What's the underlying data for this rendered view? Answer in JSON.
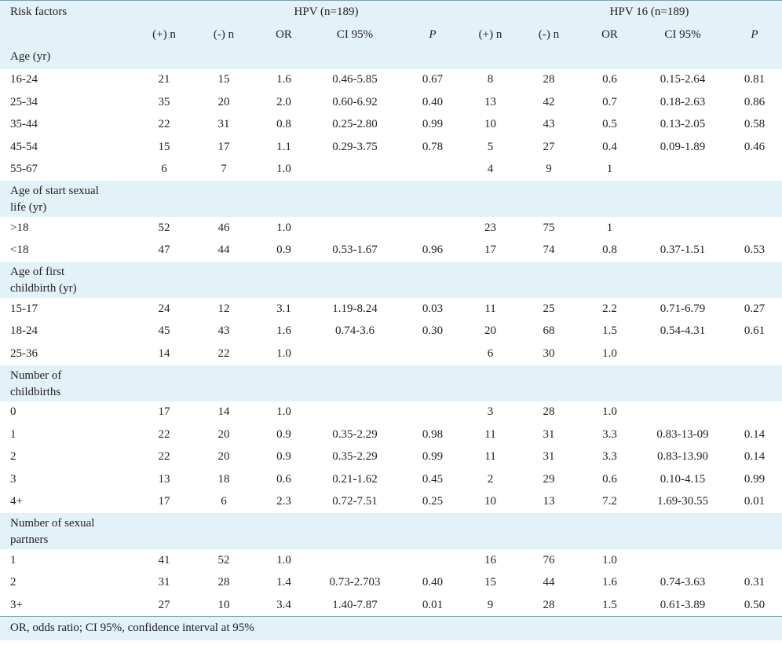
{
  "header": {
    "risk_factors": "Risk factors",
    "group1": "HPV (n=189)",
    "group2": "HPV 16 (n=189)",
    "cols": [
      "(+) n",
      "(-) n",
      "OR",
      "CI 95%",
      "P"
    ]
  },
  "sections": [
    {
      "title_lines": [
        "Age (yr)"
      ],
      "rows": [
        [
          "16-24",
          "21",
          "15",
          "1.6",
          "0.46-5.85",
          "0.67",
          "8",
          "28",
          "0.6",
          "0.15-2.64",
          "0.81"
        ],
        [
          "25-34",
          "35",
          "20",
          "2.0",
          "0.60-6.92",
          "0.40",
          "13",
          "42",
          "0.7",
          "0.18-2.63",
          "0.86"
        ],
        [
          "35-44",
          "22",
          "31",
          "0.8",
          "0.25-2.80",
          "0.99",
          "10",
          "43",
          "0.5",
          "0.13-2.05",
          "0.58"
        ],
        [
          "45-54",
          "15",
          "17",
          "1.1",
          "0.29-3.75",
          "0.78",
          "5",
          "27",
          "0.4",
          "0.09-1.89",
          "0.46"
        ],
        [
          "55-67",
          "6",
          "7",
          "1.0",
          "",
          "",
          "4",
          "9",
          "1",
          "",
          ""
        ]
      ]
    },
    {
      "title_lines": [
        "Age of start sexual",
        "life (yr)"
      ],
      "rows": [
        [
          ">18",
          "52",
          "46",
          "1.0",
          "",
          "",
          "23",
          "75",
          "1",
          "",
          ""
        ],
        [
          "<18",
          "47",
          "44",
          "0.9",
          "0.53-1.67",
          "0.96",
          "17",
          "74",
          "0.8",
          "0.37-1.51",
          "0.53"
        ]
      ]
    },
    {
      "title_lines": [
        "Age of first",
        "childbirth (yr)"
      ],
      "rows": [
        [
          "15-17",
          "24",
          "12",
          "3.1",
          "1.19-8.24",
          "0.03",
          "11",
          "25",
          "2.2",
          "0.71-6.79",
          "0.27"
        ],
        [
          "18-24",
          "45",
          "43",
          "1.6",
          "0.74-3.6",
          "0.30",
          "20",
          "68",
          "1.5",
          "0.54-4.31",
          "0.61"
        ],
        [
          "25-36",
          "14",
          "22",
          "1.0",
          "",
          "",
          "6",
          "30",
          "1.0",
          "",
          ""
        ]
      ]
    },
    {
      "title_lines": [
        "Number of",
        "childbirths"
      ],
      "rows": [
        [
          "0",
          "17",
          "14",
          "1.0",
          "",
          "",
          "3",
          "28",
          "1.0",
          "",
          ""
        ],
        [
          "1",
          "22",
          "20",
          "0.9",
          "0.35-2.29",
          "0.98",
          "11",
          "31",
          "3.3",
          "0.83-13-09",
          "0.14"
        ],
        [
          "2",
          "22",
          "20",
          "0.9",
          "0.35-2.29",
          "0.99",
          "11",
          "31",
          "3.3",
          "0.83-13.90",
          "0.14"
        ],
        [
          "3",
          "13",
          "18",
          "0.6",
          "0.21-1.62",
          "0.45",
          "2",
          "29",
          "0.6",
          "0.10-4.15",
          "0.99"
        ],
        [
          "4+",
          "17",
          "6",
          "2.3",
          "0.72-7.51",
          "0.25",
          "10",
          "13",
          "7.2",
          "1.69-30.55",
          "0.01"
        ]
      ]
    },
    {
      "title_lines": [
        "Number of sexual",
        "partners"
      ],
      "rows": [
        [
          "1",
          "41",
          "52",
          "1.0",
          "",
          "",
          "16",
          "76",
          "1.0",
          "",
          ""
        ],
        [
          "2",
          "31",
          "28",
          "1.4",
          "0.73-2.703",
          "0.40",
          "15",
          "44",
          "1.6",
          "0.74-3.63",
          "0.31"
        ],
        [
          "3+",
          "27",
          "10",
          "3.4",
          "1.40-7.87",
          "0.01",
          "9",
          "28",
          "1.5",
          "0.61-3.89",
          "0.50"
        ]
      ]
    }
  ],
  "footnote": "OR, odds ratio; CI 95%, confidence interval at 95%"
}
